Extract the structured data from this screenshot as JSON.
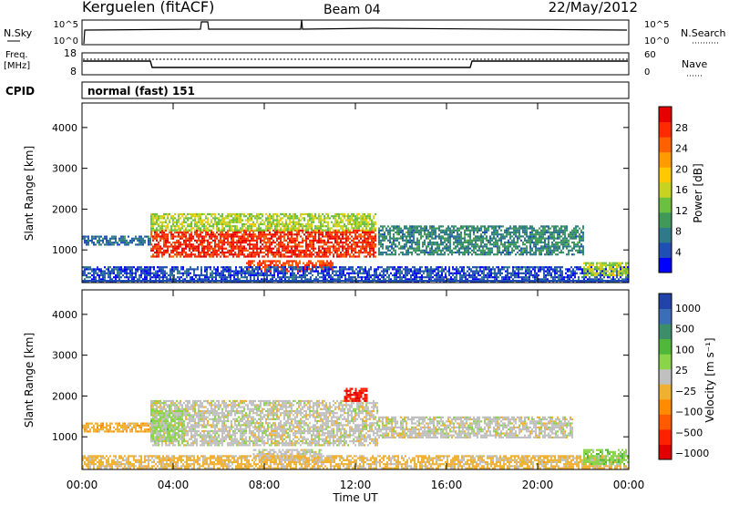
{
  "header": {
    "station": "Kerguelen (fitACF)",
    "beam": "Beam 04",
    "date": "22/May/2012"
  },
  "strips": {
    "nsky_label": "N.Sky",
    "nsky_ticks": [
      "10^5",
      "10^0"
    ],
    "nsearch_label": "N.Search",
    "nsearch_ticks": [
      "10^5",
      "10^0"
    ],
    "freq_label": "Freq.",
    "freq_unit": "[MHz]",
    "freq_ticks": [
      "18",
      "8"
    ],
    "nave_label": "Nave",
    "nave_ticks": [
      "60",
      "0"
    ],
    "cpid_label": "CPID",
    "cpid_text": "normal (fast) 151"
  },
  "colors": {
    "power": [
      "#0000ff",
      "#1f4fb4",
      "#2f7a8a",
      "#3f9a5a",
      "#6cc040",
      "#c8d220",
      "#ffc800",
      "#ff9a00",
      "#ff6000",
      "#ff2a00",
      "#e60000"
    ],
    "velocity": [
      "#2244aa",
      "#3a6fb8",
      "#3a8f6a",
      "#4fb83a",
      "#8ad44a",
      "#c0c0c0",
      "#f0b030",
      "#ff8c00",
      "#ff5a00",
      "#ff2000",
      "#e00000"
    ],
    "gray_scatter": "#c0c0c0"
  },
  "time_axis": {
    "ticks": [
      "00:00",
      "04:00",
      "08:00",
      "12:00",
      "16:00",
      "20:00",
      "00:00"
    ],
    "label": "Time UT"
  },
  "chart_data": [
    {
      "type": "heatmap",
      "panel": "power",
      "ylabel": "Slant Range [km]",
      "y_ticks": [
        "1000",
        "2000",
        "3000",
        "4000"
      ],
      "ylim": [
        200,
        4600
      ],
      "xlim_hours": [
        0,
        24
      ],
      "colorbar_label": "Power [dB]",
      "colorbar_ticks": [
        "4",
        "8",
        "12",
        "16",
        "20",
        "24",
        "28"
      ],
      "clim": [
        0,
        30
      ],
      "regions": [
        {
          "t0": 3.0,
          "t1": 12.9,
          "r0": 850,
          "r1": 1500,
          "value": 26
        },
        {
          "t0": 3.0,
          "t1": 12.9,
          "r0": 1500,
          "r1": 1900,
          "value": 14
        },
        {
          "t0": 7.2,
          "t1": 11.0,
          "r0": 500,
          "r1": 750,
          "value": 25
        },
        {
          "t0": 13.0,
          "t1": 22.0,
          "r0": 900,
          "r1": 1600,
          "value": 8
        },
        {
          "t0": 0.0,
          "t1": 3.0,
          "r0": 1150,
          "r1": 1350,
          "value": 6
        },
        {
          "t0": 0.0,
          "t1": 24.0,
          "r0": 250,
          "r1": 600,
          "value": 4
        },
        {
          "t0": 22.0,
          "t1": 24.0,
          "r0": 400,
          "r1": 700,
          "value": 14
        }
      ]
    },
    {
      "type": "heatmap",
      "panel": "velocity",
      "ylabel": "Slant Range [km]",
      "y_ticks": [
        "1000",
        "2000",
        "3000",
        "4000"
      ],
      "ylim": [
        200,
        4600
      ],
      "xlim_hours": [
        0,
        24
      ],
      "colorbar_label": "Velocity [m s⁻¹]",
      "colorbar_ticks": [
        "1000",
        "500",
        "100",
        "25",
        "−25",
        "−100",
        "−500",
        "−1000"
      ],
      "clim": [
        -1000,
        1000
      ],
      "regions": [
        {
          "t0": 3.0,
          "t1": 13.0,
          "r0": 800,
          "r1": 1900,
          "value": 0
        },
        {
          "t0": 7.5,
          "t1": 10.5,
          "r0": 450,
          "r1": 700,
          "value": 0
        },
        {
          "t0": 13.0,
          "t1": 21.5,
          "r0": 1000,
          "r1": 1500,
          "value": 0
        },
        {
          "t0": 3.0,
          "t1": 4.5,
          "r0": 900,
          "r1": 1700,
          "value": 150
        },
        {
          "t0": 0.0,
          "t1": 3.0,
          "r0": 1150,
          "r1": 1350,
          "value": -200
        },
        {
          "t0": 0.0,
          "t1": 24.0,
          "r0": 250,
          "r1": 550,
          "value": -150
        },
        {
          "t0": 11.5,
          "t1": 12.5,
          "r0": 1900,
          "r1": 2200,
          "value": -800
        },
        {
          "t0": 22.0,
          "t1": 24.0,
          "r0": 350,
          "r1": 700,
          "value": 200
        }
      ]
    }
  ]
}
